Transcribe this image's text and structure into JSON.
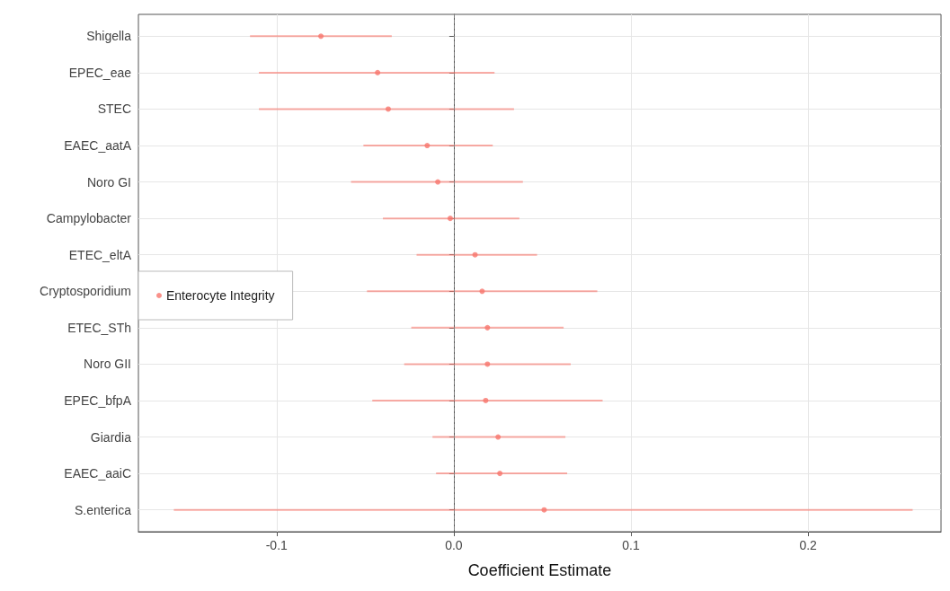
{
  "chart_data": {
    "type": "scatter",
    "orientation": "horizontal",
    "xlabel": "Coefficient Estimate",
    "categories": [
      "Shigella",
      "EPEC_eae",
      "STEC",
      "EAEC_aatA",
      "Noro GI",
      "Campylobacter",
      "ETEC_eltA",
      "Cryptosporidium",
      "ETEC_STh",
      "Noro GII",
      "EPEC_bfpA",
      "Giardia",
      "EAEC_aaiC",
      "S.enterica"
    ],
    "series": [
      {
        "name": "Enterocyte Integrity",
        "color": "#f8766d",
        "values": [
          -0.075,
          -0.043,
          -0.037,
          -0.015,
          -0.009,
          -0.002,
          0.012,
          0.016,
          0.019,
          0.019,
          0.018,
          0.025,
          0.026,
          0.051
        ],
        "errors": [
          [
            -0.115,
            -0.035
          ],
          [
            -0.11,
            0.023
          ],
          [
            -0.11,
            0.034
          ],
          [
            -0.051,
            0.022
          ],
          [
            -0.058,
            0.039
          ],
          [
            -0.04,
            0.037
          ],
          [
            -0.021,
            0.047
          ],
          [
            -0.049,
            0.081
          ],
          [
            -0.024,
            0.062
          ],
          [
            -0.028,
            0.066
          ],
          [
            -0.046,
            0.084
          ],
          [
            -0.012,
            0.063
          ],
          [
            -0.01,
            0.064
          ],
          [
            -0.158,
            0.259
          ]
        ]
      }
    ],
    "xlim": [
      -0.178,
      0.275
    ],
    "xticks": [
      -0.1,
      {
        "value": 0,
        "label": "0.0"
      },
      0.1,
      0.2
    ],
    "ref_lines": [
      {
        "axis": "x",
        "value": 0,
        "color": "#7f7f7f",
        "line_style": "dashed"
      }
    ],
    "grid": true,
    "legend": "left",
    "marker": "circle"
  }
}
